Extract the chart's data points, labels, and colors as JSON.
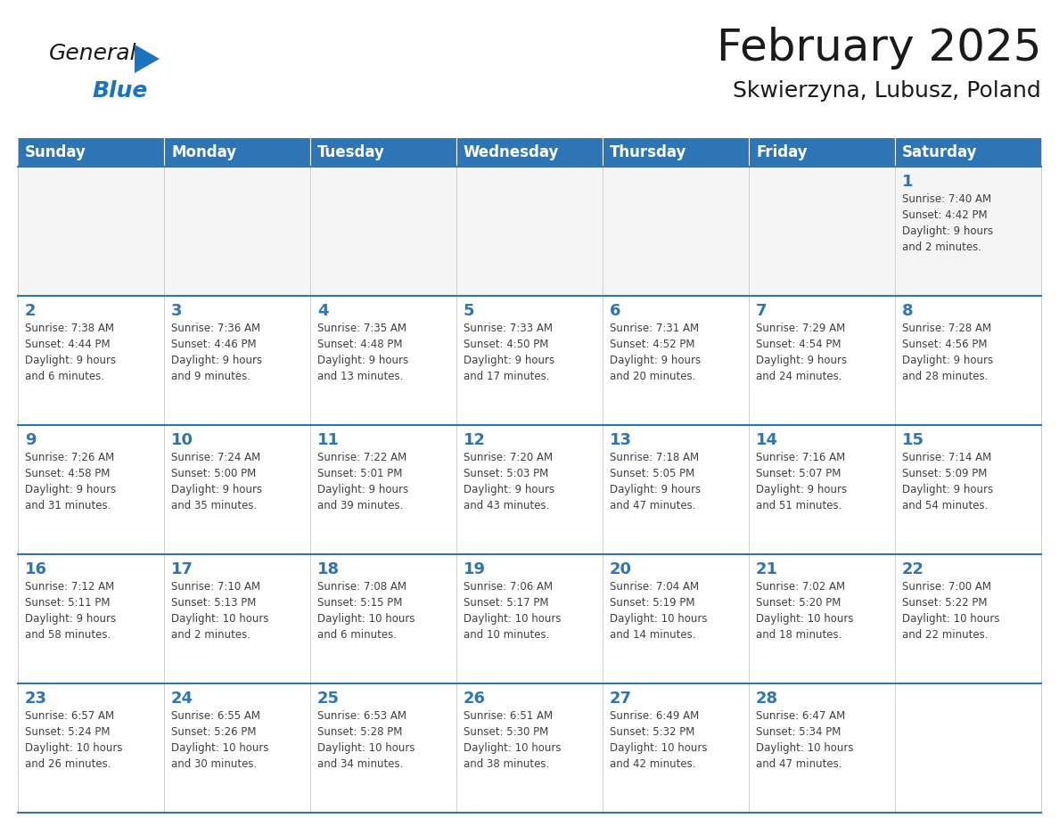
{
  "title": "February 2025",
  "subtitle": "Skwierzyna, Lubusz, Poland",
  "header_color": "#2e75b6",
  "header_text_color": "#ffffff",
  "grid_line_color": "#2e75b6",
  "cell_line_color": "#a0a0a0",
  "day_number_color": "#2e75b6",
  "cell_text_color": "#404040",
  "background_color": "#ffffff",
  "cell_bg_color": "#f2f2f2",
  "days_of_week": [
    "Sunday",
    "Monday",
    "Tuesday",
    "Wednesday",
    "Thursday",
    "Friday",
    "Saturday"
  ],
  "weeks": [
    [
      {
        "day": "",
        "info": ""
      },
      {
        "day": "",
        "info": ""
      },
      {
        "day": "",
        "info": ""
      },
      {
        "day": "",
        "info": ""
      },
      {
        "day": "",
        "info": ""
      },
      {
        "day": "",
        "info": ""
      },
      {
        "day": "1",
        "info": "Sunrise: 7:40 AM\nSunset: 4:42 PM\nDaylight: 9 hours\nand 2 minutes."
      }
    ],
    [
      {
        "day": "2",
        "info": "Sunrise: 7:38 AM\nSunset: 4:44 PM\nDaylight: 9 hours\nand 6 minutes."
      },
      {
        "day": "3",
        "info": "Sunrise: 7:36 AM\nSunset: 4:46 PM\nDaylight: 9 hours\nand 9 minutes."
      },
      {
        "day": "4",
        "info": "Sunrise: 7:35 AM\nSunset: 4:48 PM\nDaylight: 9 hours\nand 13 minutes."
      },
      {
        "day": "5",
        "info": "Sunrise: 7:33 AM\nSunset: 4:50 PM\nDaylight: 9 hours\nand 17 minutes."
      },
      {
        "day": "6",
        "info": "Sunrise: 7:31 AM\nSunset: 4:52 PM\nDaylight: 9 hours\nand 20 minutes."
      },
      {
        "day": "7",
        "info": "Sunrise: 7:29 AM\nSunset: 4:54 PM\nDaylight: 9 hours\nand 24 minutes."
      },
      {
        "day": "8",
        "info": "Sunrise: 7:28 AM\nSunset: 4:56 PM\nDaylight: 9 hours\nand 28 minutes."
      }
    ],
    [
      {
        "day": "9",
        "info": "Sunrise: 7:26 AM\nSunset: 4:58 PM\nDaylight: 9 hours\nand 31 minutes."
      },
      {
        "day": "10",
        "info": "Sunrise: 7:24 AM\nSunset: 5:00 PM\nDaylight: 9 hours\nand 35 minutes."
      },
      {
        "day": "11",
        "info": "Sunrise: 7:22 AM\nSunset: 5:01 PM\nDaylight: 9 hours\nand 39 minutes."
      },
      {
        "day": "12",
        "info": "Sunrise: 7:20 AM\nSunset: 5:03 PM\nDaylight: 9 hours\nand 43 minutes."
      },
      {
        "day": "13",
        "info": "Sunrise: 7:18 AM\nSunset: 5:05 PM\nDaylight: 9 hours\nand 47 minutes."
      },
      {
        "day": "14",
        "info": "Sunrise: 7:16 AM\nSunset: 5:07 PM\nDaylight: 9 hours\nand 51 minutes."
      },
      {
        "day": "15",
        "info": "Sunrise: 7:14 AM\nSunset: 5:09 PM\nDaylight: 9 hours\nand 54 minutes."
      }
    ],
    [
      {
        "day": "16",
        "info": "Sunrise: 7:12 AM\nSunset: 5:11 PM\nDaylight: 9 hours\nand 58 minutes."
      },
      {
        "day": "17",
        "info": "Sunrise: 7:10 AM\nSunset: 5:13 PM\nDaylight: 10 hours\nand 2 minutes."
      },
      {
        "day": "18",
        "info": "Sunrise: 7:08 AM\nSunset: 5:15 PM\nDaylight: 10 hours\nand 6 minutes."
      },
      {
        "day": "19",
        "info": "Sunrise: 7:06 AM\nSunset: 5:17 PM\nDaylight: 10 hours\nand 10 minutes."
      },
      {
        "day": "20",
        "info": "Sunrise: 7:04 AM\nSunset: 5:19 PM\nDaylight: 10 hours\nand 14 minutes."
      },
      {
        "day": "21",
        "info": "Sunrise: 7:02 AM\nSunset: 5:20 PM\nDaylight: 10 hours\nand 18 minutes."
      },
      {
        "day": "22",
        "info": "Sunrise: 7:00 AM\nSunset: 5:22 PM\nDaylight: 10 hours\nand 22 minutes."
      }
    ],
    [
      {
        "day": "23",
        "info": "Sunrise: 6:57 AM\nSunset: 5:24 PM\nDaylight: 10 hours\nand 26 minutes."
      },
      {
        "day": "24",
        "info": "Sunrise: 6:55 AM\nSunset: 5:26 PM\nDaylight: 10 hours\nand 30 minutes."
      },
      {
        "day": "25",
        "info": "Sunrise: 6:53 AM\nSunset: 5:28 PM\nDaylight: 10 hours\nand 34 minutes."
      },
      {
        "day": "26",
        "info": "Sunrise: 6:51 AM\nSunset: 5:30 PM\nDaylight: 10 hours\nand 38 minutes."
      },
      {
        "day": "27",
        "info": "Sunrise: 6:49 AM\nSunset: 5:32 PM\nDaylight: 10 hours\nand 42 minutes."
      },
      {
        "day": "28",
        "info": "Sunrise: 6:47 AM\nSunset: 5:34 PM\nDaylight: 10 hours\nand 47 minutes."
      },
      {
        "day": "",
        "info": ""
      }
    ]
  ],
  "logo_text_general": "General",
  "logo_text_blue": "Blue",
  "logo_color_general": "#1a1a1a",
  "logo_color_blue": "#1e73be",
  "logo_triangle_color": "#1e73be",
  "title_fontsize": 36,
  "subtitle_fontsize": 18,
  "header_fontsize": 12,
  "day_num_fontsize": 13,
  "cell_info_fontsize": 8.5
}
